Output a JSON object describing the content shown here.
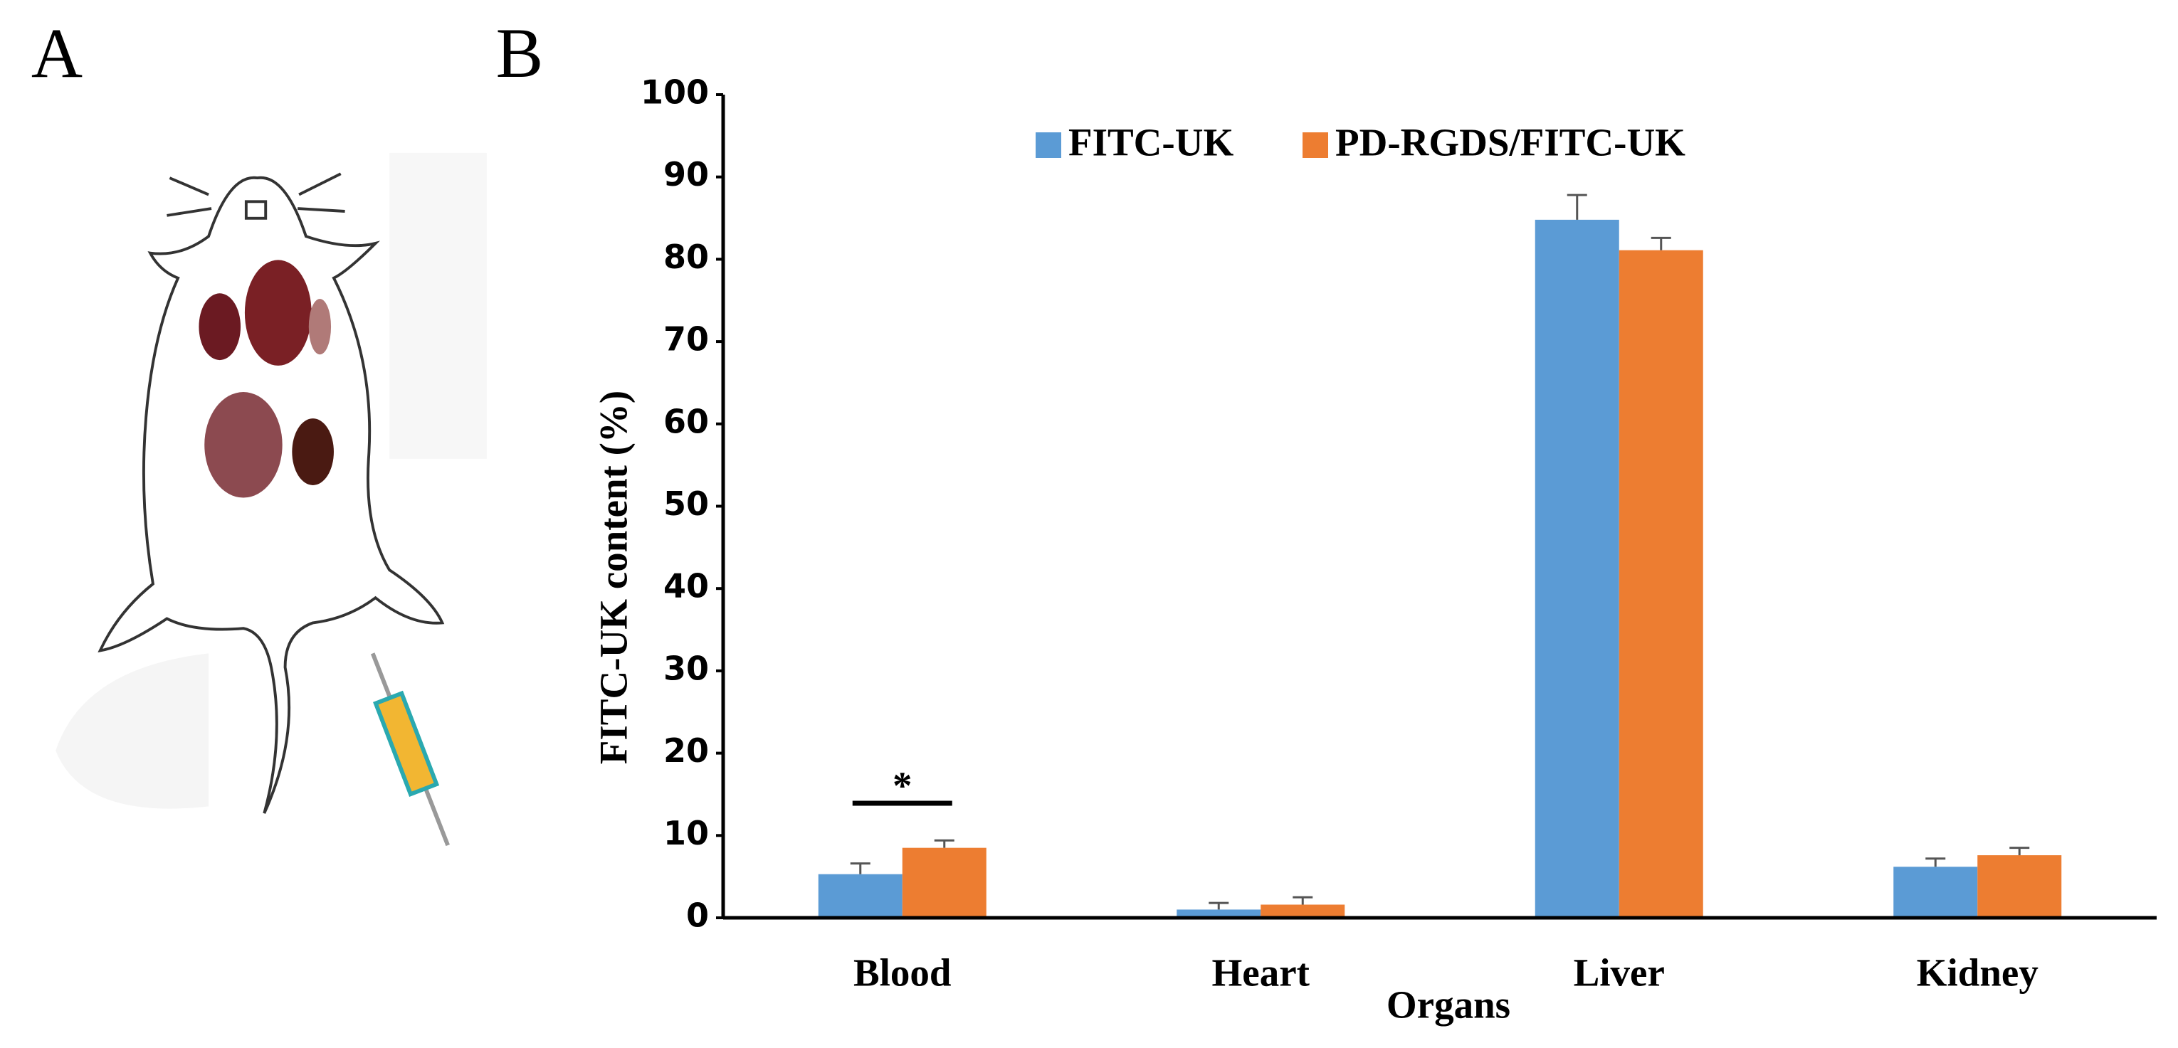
{
  "panel_labels": [
    "A",
    "B"
  ],
  "chart_data": {
    "type": "bar",
    "ylabel": "FITC-UK  content (%)",
    "xlabel": "Organs",
    "categories": [
      "Blood",
      "Heart",
      "Liver",
      "Kidney"
    ],
    "series": [
      {
        "name": "FITC-UK",
        "color": "#5b9bd5",
        "values": [
          5.3,
          1.0,
          84.8,
          6.2
        ],
        "errors": [
          1.3,
          0.8,
          3.0,
          1.0
        ]
      },
      {
        "name": "PD-RGDS/FITC-UK",
        "color": "#ed7d31",
        "values": [
          8.5,
          1.6,
          81.1,
          7.6
        ],
        "errors": [
          0.9,
          0.9,
          1.5,
          0.9
        ]
      }
    ],
    "ylim": [
      0,
      100
    ],
    "yticks": [
      0,
      10,
      20,
      30,
      40,
      50,
      60,
      70,
      80,
      90,
      100
    ],
    "legend": "top",
    "significance": "*"
  }
}
